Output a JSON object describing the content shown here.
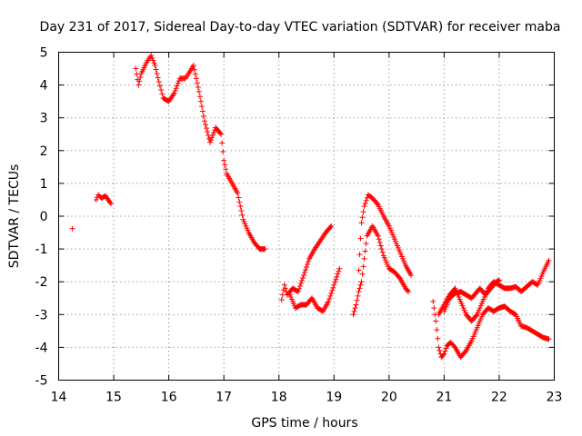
{
  "chart_data": {
    "type": "scatter",
    "title": "Day 231 of 2017, Sidereal Day-to-day VTEC variation (SDTVAR) for receiver maba",
    "xlabel": "GPS time / hours",
    "ylabel": "SDTVAR / TECUs",
    "xlim": [
      14,
      23
    ],
    "ylim": [
      -5,
      5
    ],
    "xticks": [
      14,
      15,
      16,
      17,
      18,
      19,
      20,
      21,
      22,
      23
    ],
    "yticks": [
      -5,
      -4,
      -3,
      -2,
      -1,
      0,
      1,
      2,
      3,
      4,
      5
    ],
    "grid": true,
    "marker": "+",
    "color": "#ff0000",
    "series": [
      {
        "name": "seg1",
        "points": [
          [
            14.25,
            -0.38
          ]
        ]
      },
      {
        "name": "seg2",
        "points": [
          [
            14.68,
            0.5
          ],
          [
            14.72,
            0.65
          ],
          [
            14.78,
            0.55
          ],
          [
            14.85,
            0.62
          ],
          [
            14.9,
            0.5
          ],
          [
            14.95,
            0.38
          ]
        ]
      },
      {
        "name": "seg3",
        "points": [
          [
            15.4,
            4.5
          ],
          [
            15.45,
            4.0
          ],
          [
            15.5,
            4.35
          ],
          [
            15.6,
            4.7
          ],
          [
            15.68,
            4.9
          ],
          [
            15.75,
            4.6
          ],
          [
            15.82,
            4.1
          ],
          [
            15.9,
            3.6
          ],
          [
            16.0,
            3.5
          ],
          [
            16.1,
            3.75
          ],
          [
            16.2,
            4.2
          ],
          [
            16.3,
            4.2
          ],
          [
            16.38,
            4.4
          ],
          [
            16.45,
            4.6
          ],
          [
            16.55,
            3.8
          ],
          [
            16.65,
            2.9
          ],
          [
            16.75,
            2.25
          ],
          [
            16.85,
            2.7
          ],
          [
            16.95,
            2.5
          ],
          [
            17.0,
            1.7
          ],
          [
            17.05,
            1.3
          ],
          [
            17.15,
            1.0
          ],
          [
            17.25,
            0.7
          ],
          [
            17.35,
            -0.1
          ],
          [
            17.45,
            -0.5
          ],
          [
            17.55,
            -0.8
          ],
          [
            17.65,
            -1.0
          ],
          [
            17.75,
            -1.0
          ]
        ]
      },
      {
        "name": "seg4",
        "points": [
          [
            18.05,
            -2.55
          ],
          [
            18.1,
            -2.1
          ],
          [
            18.15,
            -2.4
          ],
          [
            18.25,
            -2.2
          ],
          [
            18.35,
            -2.3
          ],
          [
            18.45,
            -1.8
          ],
          [
            18.55,
            -1.3
          ],
          [
            18.65,
            -1.0
          ],
          [
            18.75,
            -0.75
          ],
          [
            18.85,
            -0.5
          ],
          [
            18.95,
            -0.3
          ]
        ]
      },
      {
        "name": "seg5",
        "points": [
          [
            18.2,
            -2.4
          ],
          [
            18.3,
            -2.8
          ],
          [
            18.4,
            -2.7
          ],
          [
            18.5,
            -2.7
          ],
          [
            18.6,
            -2.5
          ],
          [
            18.7,
            -2.8
          ],
          [
            18.8,
            -2.9
          ],
          [
            18.9,
            -2.6
          ],
          [
            19.0,
            -2.1
          ],
          [
            19.1,
            -1.6
          ]
        ]
      },
      {
        "name": "seg6",
        "points": [
          [
            19.35,
            -3.0
          ],
          [
            19.4,
            -2.7
          ],
          [
            19.45,
            -2.3
          ],
          [
            19.5,
            -2.0
          ],
          [
            19.55,
            -1.3
          ],
          [
            19.6,
            -0.6
          ],
          [
            19.7,
            -0.3
          ],
          [
            19.8,
            -0.6
          ],
          [
            19.9,
            -1.2
          ],
          [
            20.0,
            -1.6
          ],
          [
            20.1,
            -1.7
          ],
          [
            20.2,
            -1.9
          ],
          [
            20.3,
            -2.2
          ],
          [
            20.35,
            -2.3
          ]
        ]
      },
      {
        "name": "seg7",
        "points": [
          [
            19.45,
            -1.65
          ],
          [
            19.5,
            -0.2
          ],
          [
            19.55,
            0.3
          ],
          [
            19.62,
            0.65
          ],
          [
            19.7,
            0.55
          ],
          [
            19.8,
            0.35
          ],
          [
            19.9,
            0.0
          ],
          [
            20.0,
            -0.3
          ],
          [
            20.1,
            -0.7
          ],
          [
            20.2,
            -1.1
          ],
          [
            20.3,
            -1.5
          ],
          [
            20.4,
            -1.8
          ]
        ]
      },
      {
        "name": "seg8",
        "points": [
          [
            20.8,
            -2.6
          ],
          [
            20.85,
            -3.2
          ],
          [
            20.9,
            -4.0
          ],
          [
            20.95,
            -4.3
          ],
          [
            21.0,
            -4.2
          ],
          [
            21.05,
            -3.95
          ],
          [
            21.12,
            -3.85
          ],
          [
            21.2,
            -4.0
          ],
          [
            21.3,
            -4.3
          ],
          [
            21.4,
            -4.1
          ],
          [
            21.5,
            -3.8
          ],
          [
            21.6,
            -3.4
          ],
          [
            21.7,
            -3.0
          ],
          [
            21.8,
            -2.8
          ],
          [
            21.9,
            -2.9
          ],
          [
            22.0,
            -2.8
          ],
          [
            22.1,
            -2.75
          ],
          [
            22.2,
            -2.9
          ],
          [
            22.3,
            -3.0
          ],
          [
            22.4,
            -3.35
          ],
          [
            22.5,
            -3.4
          ],
          [
            22.6,
            -3.5
          ],
          [
            22.7,
            -3.6
          ],
          [
            22.8,
            -3.7
          ],
          [
            22.9,
            -3.75
          ]
        ]
      },
      {
        "name": "seg9",
        "points": [
          [
            20.9,
            -3.0
          ],
          [
            21.0,
            -2.7
          ],
          [
            21.1,
            -2.4
          ],
          [
            21.2,
            -2.2
          ],
          [
            21.3,
            -2.6
          ],
          [
            21.4,
            -3.0
          ],
          [
            21.5,
            -3.2
          ],
          [
            21.6,
            -3.0
          ],
          [
            21.7,
            -2.6
          ],
          [
            21.8,
            -2.2
          ],
          [
            21.9,
            -2.0
          ],
          [
            22.0,
            -2.1
          ],
          [
            22.1,
            -2.2
          ],
          [
            22.2,
            -2.2
          ],
          [
            22.3,
            -2.15
          ],
          [
            22.4,
            -2.3
          ],
          [
            22.5,
            -2.15
          ],
          [
            22.6,
            -2.0
          ],
          [
            22.7,
            -2.1
          ],
          [
            22.8,
            -1.7
          ],
          [
            22.9,
            -1.35
          ]
        ]
      },
      {
        "name": "seg10",
        "points": [
          [
            21.0,
            -2.9
          ],
          [
            21.1,
            -2.5
          ],
          [
            21.2,
            -2.35
          ],
          [
            21.3,
            -2.3
          ],
          [
            21.4,
            -2.4
          ],
          [
            21.5,
            -2.5
          ],
          [
            21.6,
            -2.3
          ],
          [
            21.65,
            -2.2
          ],
          [
            21.75,
            -2.4
          ],
          [
            21.85,
            -2.2
          ],
          [
            21.95,
            -2.0
          ],
          [
            22.0,
            -1.95
          ]
        ]
      }
    ]
  }
}
